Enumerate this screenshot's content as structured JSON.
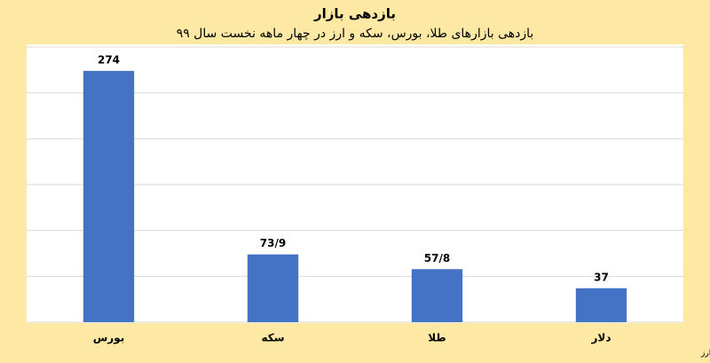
{
  "chart_data": {
    "type": "bar",
    "title": "بازدهی بازار",
    "subtitle": "بازدهی بازارهای طلا، بورس، سکه و ارز در چهار ماهه نخست سال ۹۹",
    "source": "منبع؛ دلار: صرافی ملی، بورس: سازمان بورس و اوراق بهادار، طلا و سکه: شبکه اطلاع‌رسانی طلا، سکه و ارز",
    "categories": [
      "بورس",
      "سکه",
      "طلا",
      "دلار"
    ],
    "values": [
      274,
      73.9,
      57.8,
      37
    ],
    "value_labels": [
      "274",
      "73/9",
      "57/8",
      "37"
    ],
    "color": "#4472c4",
    "ylim": [
      0,
      300
    ],
    "yticks": [
      0,
      50,
      100,
      150,
      200,
      250,
      300
    ],
    "grid": true
  }
}
